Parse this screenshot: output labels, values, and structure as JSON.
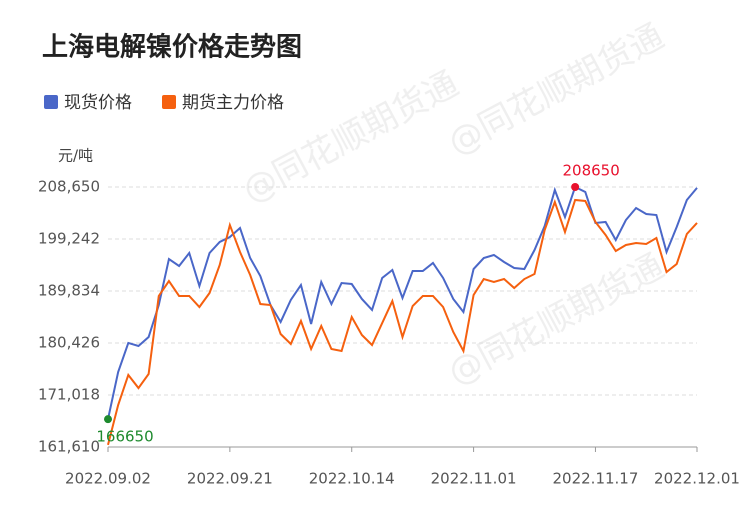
{
  "chart_data": {
    "type": "line",
    "title": "上海电解镍价格走势图",
    "unit": "元/吨",
    "watermark": "@同花顺期货通",
    "categories": [
      "2022.09.02",
      null,
      null,
      null,
      null,
      null,
      null,
      null,
      null,
      null,
      null,
      null,
      "2022.09.21",
      null,
      null,
      null,
      null,
      null,
      null,
      null,
      null,
      null,
      null,
      null,
      "2022.10.14",
      null,
      null,
      null,
      null,
      null,
      null,
      null,
      null,
      null,
      null,
      null,
      "2022.11.01",
      null,
      null,
      null,
      null,
      null,
      null,
      null,
      null,
      null,
      null,
      null,
      "2022.11.17",
      null,
      null,
      null,
      null,
      null,
      null,
      null,
      null,
      null,
      "2022.12.01"
    ],
    "series": [
      {
        "name": "现货价格",
        "color": "#4a67c8",
        "values": [
          166650,
          175180,
          180430,
          179880,
          181510,
          187300,
          195620,
          194360,
          196710,
          190740,
          196710,
          198700,
          199600,
          201230,
          195800,
          192550,
          187300,
          184230,
          188210,
          190920,
          183860,
          191460,
          187480,
          191280,
          191100,
          188390,
          186400,
          192190,
          193630,
          188570,
          193450,
          193450,
          194900,
          192190,
          188390,
          186030,
          193810,
          195800,
          196350,
          195080,
          193990,
          193810,
          197250,
          201590,
          208110,
          203220,
          208650,
          207750,
          202140,
          202320,
          199060,
          202680,
          204850,
          203760,
          203580,
          196890,
          201410,
          206300,
          208500
        ]
      },
      {
        "name": "期货主力价格",
        "color": "#f5600f",
        "values": [
          162000,
          169210,
          174640,
          172280,
          174820,
          188930,
          191640,
          188930,
          188930,
          186940,
          189470,
          194540,
          201770,
          196890,
          192730,
          187480,
          187300,
          182050,
          180250,
          184410,
          179340,
          183500,
          179340,
          178980,
          185130,
          181870,
          180060,
          184040,
          188020,
          181510,
          187120,
          188930,
          188930,
          186940,
          182420,
          178980,
          189110,
          192000,
          191460,
          192000,
          190380,
          192000,
          192910,
          200870,
          205940,
          200510,
          206300,
          206120,
          202320,
          199970,
          197070,
          198160,
          198520,
          198340,
          199420,
          193270,
          194720,
          200150,
          202140
        ]
      }
    ],
    "min_color": "#1e8a2e",
    "max_color": "#e8112d",
    "ylim": [
      161610,
      208650
    ],
    "yticks": [
      {
        "value": 161610,
        "label": "161,610"
      },
      {
        "value": 171018,
        "label": "171,018"
      },
      {
        "value": 180426,
        "label": "180,426"
      },
      {
        "value": 189834,
        "label": "189,834"
      },
      {
        "value": 199242,
        "label": "199,242"
      },
      {
        "value": 208650,
        "label": "208,650"
      }
    ],
    "grid": true
  }
}
